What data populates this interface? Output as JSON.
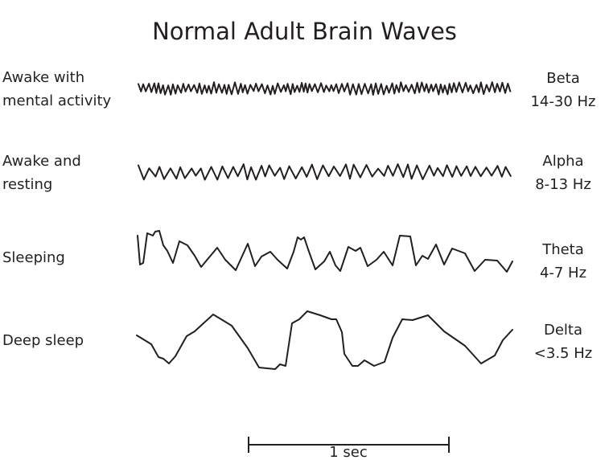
{
  "title": "Normal Adult Brain Waves",
  "rows": [
    {
      "state": "Awake with\nmental activity",
      "state_lines": [
        "Awake with",
        "mental activity"
      ],
      "band": "Beta",
      "range": "14-30 Hz"
    },
    {
      "state_lines": [
        "Awake and",
        "resting"
      ],
      "band": "Alpha",
      "range": "8-13 Hz"
    },
    {
      "state_lines": [
        "Sleeping"
      ],
      "band": "Theta",
      "range": "4-7 Hz"
    },
    {
      "state_lines": [
        "Deep sleep"
      ],
      "band": "Delta",
      "range": "<3.5 Hz"
    }
  ],
  "scale_bar": {
    "label": "1 sec"
  },
  "colors": {
    "ink": "#231f20"
  }
}
